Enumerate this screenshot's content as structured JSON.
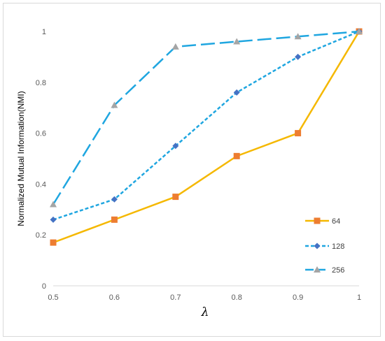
{
  "chart_data": {
    "type": "line",
    "title": "",
    "xlabel": "λ",
    "ylabel": "Normalized Mutual Information(NMI)",
    "x": [
      0.5,
      0.6,
      0.7,
      0.8,
      0.9,
      1.0
    ],
    "x_tick_labels": [
      "0.5",
      "0.6",
      "0.7",
      "0.8",
      "0.9",
      "1"
    ],
    "y_tick_labels": [
      "0",
      "0.2",
      "0.4",
      "0.6",
      "0.8",
      "1"
    ],
    "xlim": [
      0.5,
      1.0
    ],
    "ylim": [
      0,
      1
    ],
    "grid": false,
    "legend_position": "right",
    "series": [
      {
        "name": "64",
        "values": [
          0.17,
          0.26,
          0.35,
          0.51,
          0.6,
          1.0
        ],
        "color": "#F5B800",
        "marker_color": "#ED7D31",
        "marker": "square",
        "line_style": "solid"
      },
      {
        "name": "128",
        "values": [
          0.26,
          0.34,
          0.55,
          0.76,
          0.9,
          1.0
        ],
        "color": "#1FA6E0",
        "marker_color": "#4472C4",
        "marker": "diamond",
        "line_style": "dotted"
      },
      {
        "name": "256",
        "values": [
          0.32,
          0.71,
          0.94,
          0.96,
          0.98,
          1.0
        ],
        "color": "#1FA6E0",
        "marker_color": "#A5A5A5",
        "marker": "triangle",
        "line_style": "dashed"
      }
    ]
  }
}
